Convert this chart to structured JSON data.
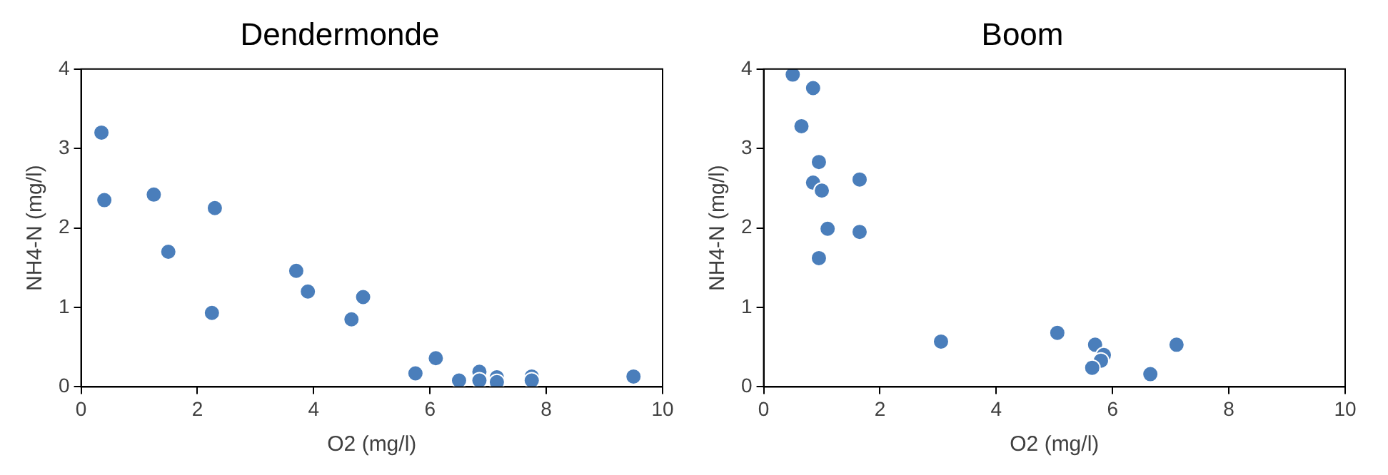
{
  "chart_data": [
    {
      "type": "scatter",
      "title": "Dendermonde",
      "xlabel": "O2 (mg/l)",
      "ylabel": "NH4-N (mg/l)",
      "color": "#4a7ebb",
      "marker": "circle",
      "grid": false,
      "legend": false,
      "x": [
        0.35,
        0.4,
        1.25,
        1.5,
        2.3,
        2.25,
        3.7,
        3.9,
        4.85,
        4.65,
        5.75,
        6.1,
        6.5,
        6.85,
        6.85,
        7.15,
        7.15,
        7.75,
        7.75,
        9.5
      ],
      "values": [
        3.2,
        2.35,
        2.42,
        1.7,
        2.25,
        0.93,
        1.46,
        1.2,
        1.13,
        0.85,
        0.17,
        0.36,
        0.08,
        0.19,
        0.08,
        0.12,
        0.06,
        0.13,
        0.08,
        0.13
      ],
      "xlim": [
        0,
        10
      ],
      "xticks": [
        0,
        2,
        4,
        6,
        8,
        10
      ],
      "ylim": [
        0,
        4
      ],
      "yticks": [
        0,
        1,
        2,
        3,
        4
      ]
    },
    {
      "type": "scatter",
      "title": "Boom",
      "xlabel": "O2 (mg/l)",
      "ylabel": "NH4-N (mg/l)",
      "color": "#4a7ebb",
      "marker": "circle",
      "grid": false,
      "legend": false,
      "x": [
        0.5,
        0.85,
        0.65,
        0.95,
        0.85,
        1.0,
        1.1,
        0.95,
        1.65,
        1.65,
        3.05,
        5.05,
        5.7,
        5.85,
        5.8,
        5.65,
        6.65,
        7.1
      ],
      "values": [
        3.93,
        3.76,
        3.28,
        2.83,
        2.57,
        2.47,
        1.99,
        1.62,
        2.61,
        1.95,
        0.57,
        0.68,
        0.53,
        0.4,
        0.33,
        0.24,
        0.16,
        0.53
      ],
      "xlim": [
        0,
        10
      ],
      "xticks": [
        0,
        2,
        4,
        6,
        8,
        10
      ],
      "ylim": [
        0,
        4
      ],
      "yticks": [
        0,
        1,
        2,
        3,
        4
      ]
    }
  ]
}
